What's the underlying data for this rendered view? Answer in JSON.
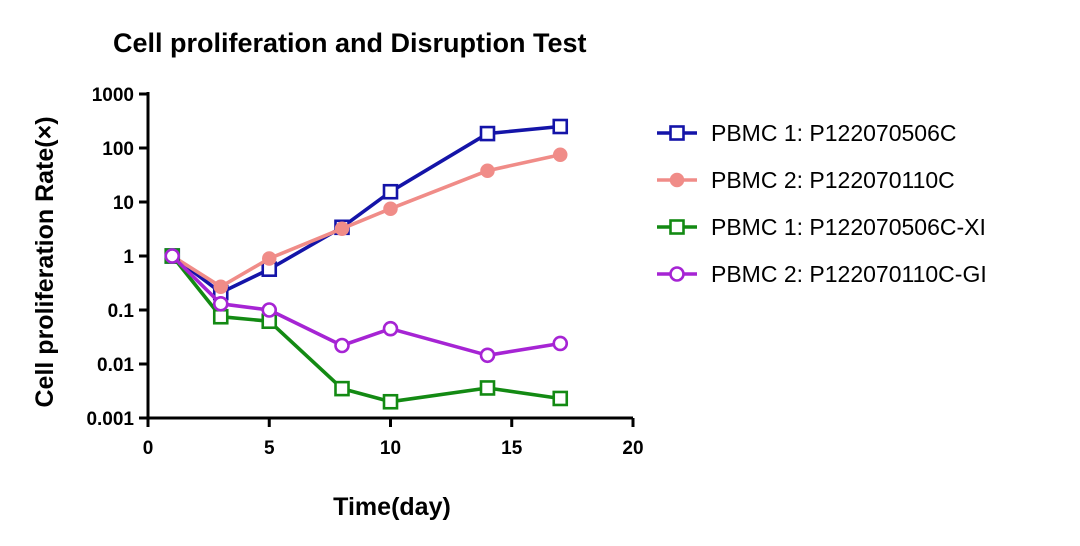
{
  "chart_data": {
    "type": "line",
    "title": "Cell proliferation and Disruption Test",
    "xlabel": "Time(day)",
    "ylabel": "Cell proliferation Rate(×)",
    "x_scale": "linear",
    "y_scale": "log",
    "xlim": [
      0,
      20
    ],
    "ylim": [
      0.001,
      1000
    ],
    "x_ticks": [
      0,
      5,
      10,
      15,
      20
    ],
    "x_tick_labels": [
      "0",
      "5",
      "10",
      "15",
      "20"
    ],
    "y_ticks": [
      0.001,
      0.01,
      0.1,
      1,
      10,
      100,
      1000
    ],
    "y_tick_labels": [
      "0.001",
      "0.01",
      "0.1",
      "1",
      "10",
      "100",
      "1000"
    ],
    "legend_position": "right",
    "series": [
      {
        "name": "PBMC 1: P122070506C",
        "color": "#1414a8",
        "marker": "square-open",
        "x": [
          1,
          3,
          5,
          8,
          10,
          14,
          17
        ],
        "y": [
          1,
          0.21,
          0.57,
          3.4,
          15.5,
          185,
          250
        ]
      },
      {
        "name": "PBMC 2: P122070110C",
        "color": "#f08c88",
        "marker": "circle-filled",
        "x": [
          1,
          3,
          5,
          8,
          10,
          14,
          17
        ],
        "y": [
          1,
          0.27,
          0.9,
          3.2,
          7.5,
          38,
          75
        ]
      },
      {
        "name": "PBMC 1: P122070506C-XI",
        "color": "#138a13",
        "marker": "square-open",
        "x": [
          1,
          3,
          5,
          8,
          10,
          14,
          17
        ],
        "y": [
          1,
          0.075,
          0.062,
          0.0035,
          0.002,
          0.0036,
          0.0023
        ]
      },
      {
        "name": "PBMC 2: P122070110C-GI",
        "color": "#a624d4",
        "marker": "circle-open",
        "x": [
          1,
          3,
          5,
          8,
          10,
          14,
          17
        ],
        "y": [
          1,
          0.13,
          0.1,
          0.022,
          0.045,
          0.0145,
          0.024
        ]
      }
    ]
  }
}
